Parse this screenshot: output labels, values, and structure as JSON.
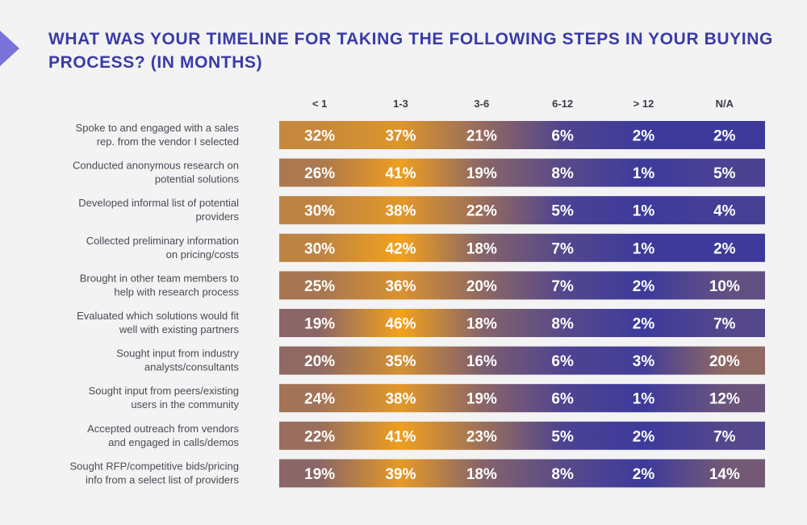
{
  "chart_data": {
    "type": "heatmap",
    "title": "WHAT WAS YOUR TIMELINE FOR TAKING THE FOLLOWING STEPS IN YOUR BUYING PROCESS? (IN MONTHS)",
    "columns": [
      "< 1",
      "1-3",
      "3-6",
      "6-12",
      "> 12",
      "N/A"
    ],
    "rows": [
      {
        "label": [
          "Spoke to and engaged with a sales",
          "rep. from the vendor I selected"
        ],
        "values": [
          32,
          37,
          21,
          6,
          2,
          2
        ]
      },
      {
        "label": [
          "Conducted anonymous research on",
          "potential solutions"
        ],
        "values": [
          26,
          41,
          19,
          8,
          1,
          5
        ]
      },
      {
        "label": [
          "Developed informal list of potential",
          "providers"
        ],
        "values": [
          30,
          38,
          22,
          5,
          1,
          4
        ]
      },
      {
        "label": [
          "Collected preliminary information",
          "on pricing/costs"
        ],
        "values": [
          30,
          42,
          18,
          7,
          1,
          2
        ]
      },
      {
        "label": [
          "Brought in other team members to",
          "help with research process"
        ],
        "values": [
          25,
          36,
          20,
          7,
          2,
          10
        ]
      },
      {
        "label": [
          "Evaluated which solutions would fit",
          "well with existing partners"
        ],
        "values": [
          19,
          46,
          18,
          8,
          2,
          7
        ]
      },
      {
        "label": [
          "Sought input from industry",
          "analysts/consultants"
        ],
        "values": [
          20,
          35,
          16,
          6,
          3,
          20
        ]
      },
      {
        "label": [
          "Sought input from peers/existing",
          "users in the community"
        ],
        "values": [
          24,
          38,
          19,
          6,
          1,
          12
        ]
      },
      {
        "label": [
          "Accepted outreach from vendors",
          "and engaged in calls/demos"
        ],
        "values": [
          22,
          41,
          23,
          5,
          2,
          7
        ]
      },
      {
        "label": [
          "Sought RFP/competitive bids/pricing",
          "info from a select list of providers"
        ],
        "values": [
          19,
          39,
          18,
          8,
          2,
          14
        ]
      }
    ],
    "value_suffix": "%",
    "color_scale": {
      "low": "#3d3a9c",
      "high": "#f4a21c"
    }
  }
}
